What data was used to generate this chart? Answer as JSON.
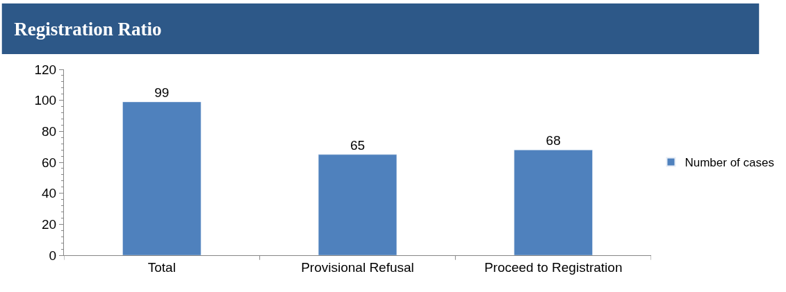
{
  "chart_data": {
    "type": "bar",
    "title": "Registration Ratio",
    "categories": [
      "Total",
      "Provisional Refusal",
      "Proceed to Registration"
    ],
    "series": [
      {
        "name": "Number of cases",
        "color": "#4f81bd",
        "values": [
          99,
          65,
          68
        ]
      }
    ],
    "ylim": [
      0,
      120
    ],
    "yticks": [
      0,
      20,
      40,
      60,
      80,
      100,
      120
    ],
    "data_labels": true,
    "legend": "right"
  }
}
